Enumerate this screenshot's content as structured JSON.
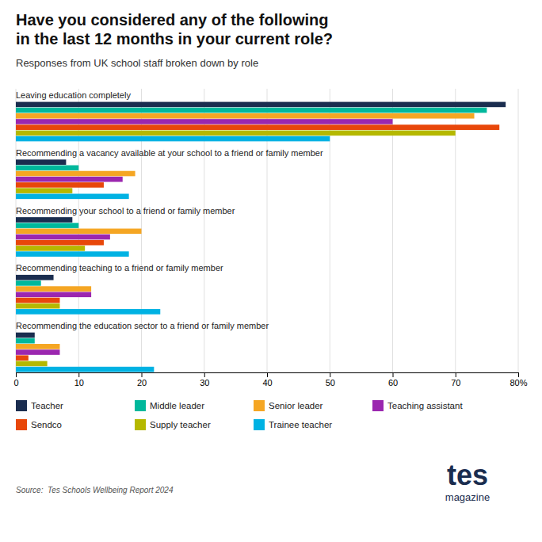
{
  "chart_data": {
    "type": "bar",
    "orientation": "horizontal",
    "title": "Have you considered any of the following\nin the last 12 months in your current role?",
    "subtitle": "Responses from UK school staff broken down by role",
    "source": "Source:  Tes Schools Wellbeing Report 2024",
    "annotations": [
      "tes",
      "magazine"
    ],
    "categories": [
      "Leaving education completely",
      "Recommending a vacancy available at your school to a friend or family member",
      "Recommending your school to a friend or family member",
      "Recommending teaching to a friend or family member",
      "Recommending the education sector to a friend or family member"
    ],
    "series": [
      {
        "name": "Teacher",
        "color": "#1a2d4f",
        "values": [
          78,
          8,
          9,
          6,
          3
        ]
      },
      {
        "name": "Middle leader",
        "color": "#00b89c",
        "values": [
          75,
          10,
          10,
          4,
          3
        ]
      },
      {
        "name": "Senior leader",
        "color": "#f5a623",
        "values": [
          73,
          19,
          20,
          12,
          7
        ]
      },
      {
        "name": "Teaching assistant",
        "color": "#9b27af",
        "values": [
          60,
          17,
          15,
          12,
          7
        ]
      },
      {
        "name": "Sendco",
        "color": "#e8470a",
        "values": [
          77,
          14,
          14,
          7,
          2
        ]
      },
      {
        "name": "Supply teacher",
        "color": "#b5b800",
        "values": [
          70,
          9,
          11,
          7,
          5
        ]
      },
      {
        "name": "Trainee teacher",
        "color": "#00b2e3",
        "values": [
          50,
          18,
          18,
          23,
          22
        ]
      }
    ],
    "xlim": [
      0,
      80
    ],
    "xticks": [
      0,
      10,
      20,
      30,
      40,
      50,
      60,
      70,
      {
        "value": 80,
        "label": "80%"
      }
    ],
    "grid": true,
    "legend": "bottom"
  }
}
